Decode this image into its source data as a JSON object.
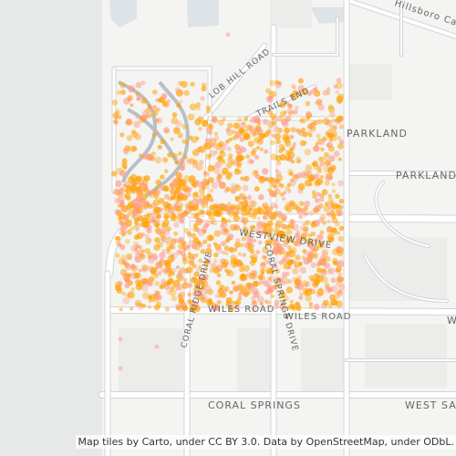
{
  "map": {
    "attribution": "Map tiles by Carto, under CC BY 3.0. Data by OpenStreetMap, under ODbL.",
    "labels": {
      "hillsboro": "Hillsboro Canal",
      "lob_hill": "LOB HILL ROAD",
      "trails_end": "TRAILS END",
      "parkland1": "PARKLAND",
      "parkland2": "PARKLAND",
      "westview": "WESTVIEW DRIVE",
      "coral_ridge": "CORAL RIDGE DRIVE",
      "coral_springs_drive": "CORAL SPRINGS DRIVE",
      "wiles_road_1": "WILES ROAD",
      "wiles_road_2": "WILES ROAD",
      "coral_springs": "CORAL SPRINGS",
      "west_sa": "WEST SA",
      "w_edge": "W"
    },
    "colors": {
      "water": "#dde3e6",
      "land_west": "#e6e9e7",
      "road": "#ffffff",
      "road_outline": "#d4d4d4",
      "dot_fill": "#ffa000",
      "dot_highlight": "#ff9a8a"
    }
  }
}
